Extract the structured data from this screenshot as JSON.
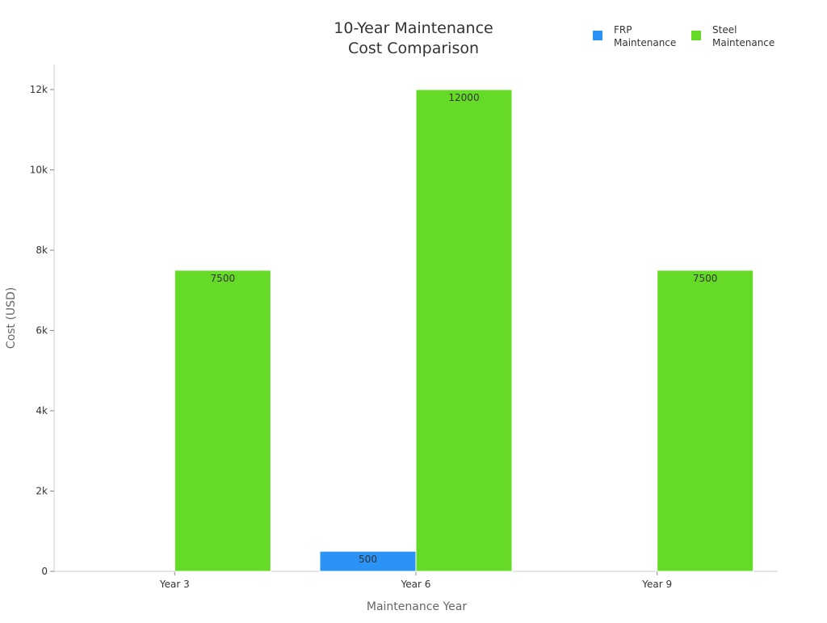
{
  "chart_data": {
    "type": "bar",
    "title": "10-Year Maintenance\nCost Comparison",
    "title_lines": [
      "10-Year Maintenance",
      "Cost Comparison"
    ],
    "xlabel": "Maintenance Year",
    "ylabel": "Cost (USD)",
    "categories": [
      "Year 3",
      "Year 6",
      "Year 9"
    ],
    "series": [
      {
        "name": "FRP Maintenance",
        "name_lines": [
          "FRP",
          "Maintenance"
        ],
        "color": "#2b93f5",
        "values": [
          0,
          500,
          0
        ]
      },
      {
        "name": "Steel Maintenance",
        "name_lines": [
          "Steel",
          "Maintenance"
        ],
        "color": "#66db27",
        "values": [
          7500,
          12000,
          7500
        ]
      }
    ],
    "ylim": [
      0,
      12600
    ],
    "yticks": [
      0,
      2000,
      4000,
      6000,
      8000,
      10000,
      12000
    ],
    "ytick_labels": [
      "0",
      "2k",
      "4k",
      "6k",
      "8k",
      "10k",
      "12k"
    ],
    "grid": false,
    "legend": "top-right",
    "data_labels": true
  }
}
